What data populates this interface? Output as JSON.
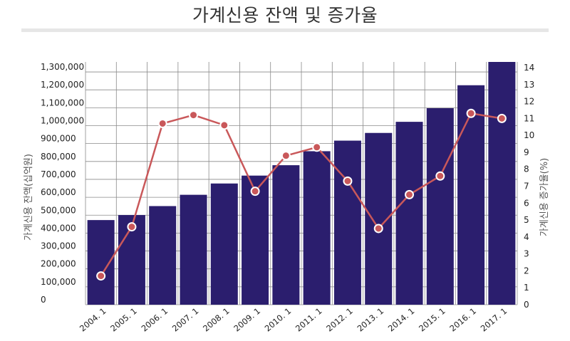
{
  "title": "가계신용 잔액 및 증가율",
  "chart_data": {
    "type": "bar",
    "categories": [
      "2004. 1",
      "2005. 1",
      "2006. 1",
      "2007. 1",
      "2008. 1",
      "2009. 1",
      "2010. 1",
      "2011. 1",
      "2012. 1",
      "2013. 1",
      "2014. 1",
      "2015. 1",
      "2016. 1",
      "2017. 1"
    ],
    "series": [
      {
        "type": "bar",
        "axis": "left",
        "values": [
          472000,
          500000,
          550000,
          613000,
          676000,
          720000,
          778000,
          856000,
          915000,
          958000,
          1020000,
          1096000,
          1224000,
          1354000
        ],
        "color": "#2b1e6e"
      },
      {
        "type": "line",
        "axis": "right",
        "values": [
          1.7,
          4.6,
          10.7,
          11.2,
          10.6,
          6.7,
          8.8,
          9.3,
          7.3,
          4.5,
          6.5,
          7.6,
          11.3,
          11.0
        ],
        "color": "#c9585a"
      }
    ],
    "ylabel": "가계신용 잔액(십억원)",
    "y2label": "가계신용 증가율(%)",
    "ylim": [
      0,
      1350000
    ],
    "y2lim": [
      0,
      14.5
    ],
    "yticks": [
      "0",
      "100,000",
      "200,000",
      "300,000",
      "400,000",
      "500,000",
      "600,000",
      "700,000",
      "800,000",
      "900,000",
      "1,000,000",
      "1,100,000",
      "1,200,000",
      "1,300,000"
    ],
    "y2ticks": [
      "0",
      "1",
      "2",
      "3",
      "4",
      "5",
      "6",
      "7",
      "8",
      "9",
      "10",
      "11",
      "12",
      "13",
      "14"
    ],
    "grid": true
  }
}
